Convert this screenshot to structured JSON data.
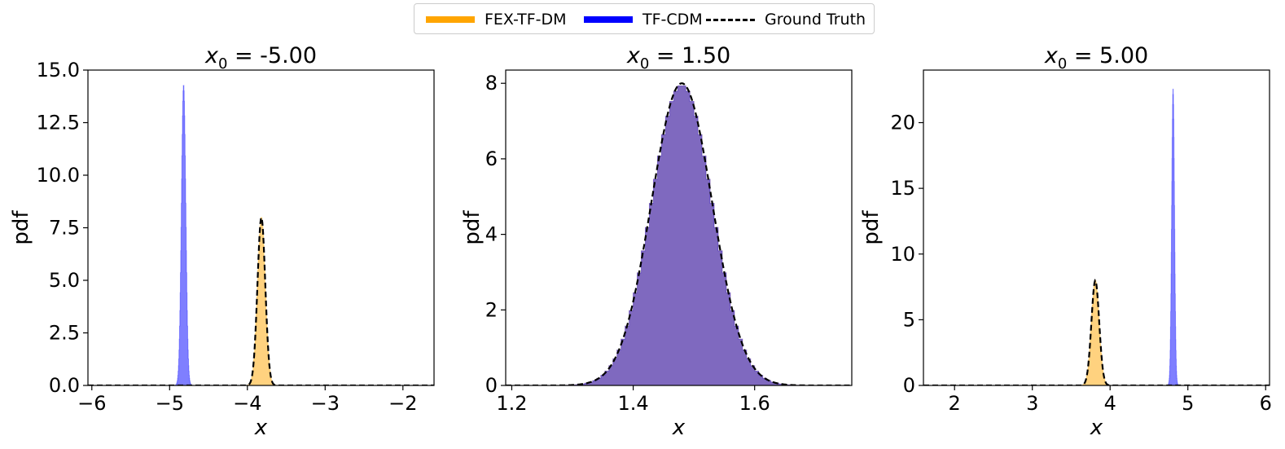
{
  "legend": {
    "items": [
      {
        "label": "FEX-TF-DM",
        "color": "#FFA500",
        "style": "solid"
      },
      {
        "label": "TF-CDM",
        "color": "#0000FF",
        "style": "solid"
      },
      {
        "label": "Ground Truth",
        "color": "#000000",
        "style": "dashed"
      }
    ]
  },
  "chart_data": [
    {
      "type": "area",
      "title_var": "x",
      "title_sub": "0",
      "title_value": "= -5.00",
      "xlabel": "x",
      "ylabel": "pdf",
      "xlim": [
        -6.05,
        -1.6
      ],
      "ylim": [
        0,
        15.0
      ],
      "xticks": [
        -6,
        -5,
        -4,
        -3,
        -2
      ],
      "xtick_labels": [
        "−6",
        "−5",
        "−4",
        "−3",
        "−2"
      ],
      "yticks": [
        0,
        2.5,
        5,
        7.5,
        10,
        12.5,
        15
      ],
      "ytick_labels": [
        "0.0",
        "2.5",
        "5.0",
        "7.5",
        "10.0",
        "12.5",
        "15.0"
      ],
      "series": [
        {
          "name": "FEX-TF-DM",
          "kind": "hist",
          "mean": -3.82,
          "std": 0.05,
          "peak": 8.0,
          "color": "#FFA500",
          "opacity": 0.5
        },
        {
          "name": "TF-CDM",
          "kind": "hist",
          "mean": -4.82,
          "std": 0.028,
          "peak": 14.3,
          "color": "#0000FF",
          "opacity": 0.5
        },
        {
          "name": "Ground Truth",
          "kind": "line",
          "mean": -3.82,
          "std": 0.05,
          "peak": 8.0,
          "color": "#000000",
          "dashed": true
        }
      ]
    },
    {
      "type": "area",
      "title_var": "x",
      "title_sub": "0",
      "title_value": "= 1.50",
      "xlabel": "x",
      "ylabel": "pdf",
      "xlim": [
        1.19,
        1.76
      ],
      "ylim": [
        0,
        8.35
      ],
      "xticks": [
        1.2,
        1.4,
        1.6
      ],
      "xtick_labels": [
        "1.2",
        "1.4",
        "1.6"
      ],
      "yticks": [
        0,
        2,
        4,
        6,
        8
      ],
      "ytick_labels": [
        "0",
        "2",
        "4",
        "6",
        "8"
      ],
      "series": [
        {
          "name": "FEX-TF-DM",
          "kind": "hist",
          "mean": 1.48,
          "std": 0.05,
          "peak": 7.95,
          "color": "#FFA500",
          "opacity": 0.5
        },
        {
          "name": "TF-CDM",
          "kind": "hist",
          "mean": 1.48,
          "std": 0.05,
          "peak": 7.95,
          "color": "#0000FF",
          "opacity": 0.5
        },
        {
          "name": "Ground Truth",
          "kind": "line",
          "mean": 1.48,
          "std": 0.05,
          "peak": 8.0,
          "color": "#000000",
          "dashed": true
        }
      ]
    },
    {
      "type": "area",
      "title_var": "x",
      "title_sub": "0",
      "title_value": "= 5.00",
      "xlabel": "x",
      "ylabel": "pdf",
      "xlim": [
        1.6,
        6.05
      ],
      "ylim": [
        0,
        24
      ],
      "xticks": [
        2,
        3,
        4,
        5,
        6
      ],
      "xtick_labels": [
        "2",
        "3",
        "4",
        "5",
        "6"
      ],
      "yticks": [
        0,
        5,
        10,
        15,
        20
      ],
      "ytick_labels": [
        "0",
        "5",
        "10",
        "15",
        "20"
      ],
      "series": [
        {
          "name": "FEX-TF-DM",
          "kind": "hist",
          "mean": 3.81,
          "std": 0.05,
          "peak": 8.0,
          "color": "#FFA500",
          "opacity": 0.5
        },
        {
          "name": "TF-CDM",
          "kind": "hist",
          "mean": 4.81,
          "std": 0.018,
          "peak": 22.6,
          "color": "#0000FF",
          "opacity": 0.5
        },
        {
          "name": "Ground Truth",
          "kind": "line",
          "mean": 3.81,
          "std": 0.05,
          "peak": 8.0,
          "color": "#000000",
          "dashed": true
        }
      ]
    }
  ]
}
